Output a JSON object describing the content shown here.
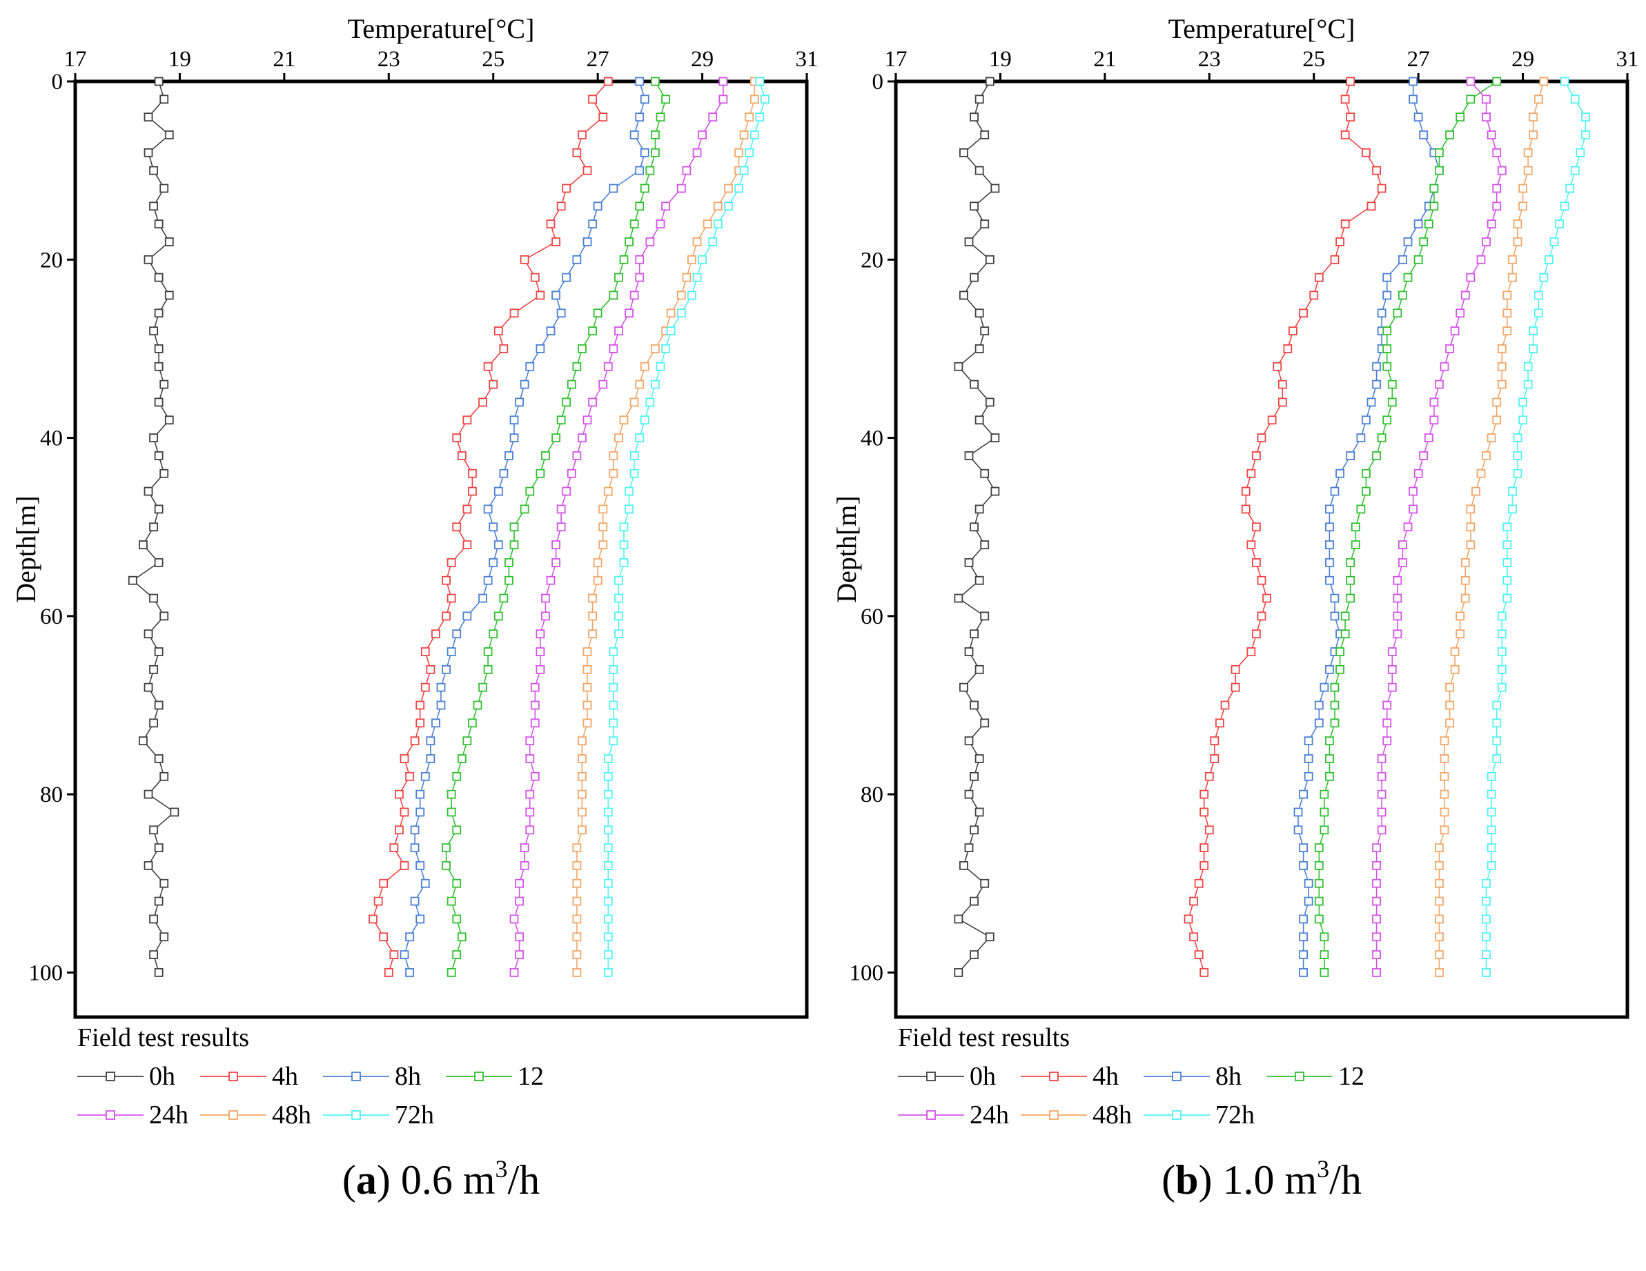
{
  "chart_data": [
    {
      "type": "line",
      "panel": "a",
      "caption_letter": "a",
      "caption_text": " 0.6 m",
      "caption_sup": "3",
      "caption_unit": "/h",
      "title": "(a) 0.6 m³/h",
      "xlabel": "Temperature[°C]",
      "ylabel": "Depth[m]",
      "xlim": [
        17,
        31
      ],
      "ylim": [
        0,
        105
      ],
      "x_axis_position": "top",
      "y_inverted": true,
      "xticks": [
        17,
        19,
        21,
        23,
        25,
        27,
        29,
        31
      ],
      "yticks": [
        0,
        20,
        40,
        60,
        80,
        100
      ],
      "legend_title": "Field test results",
      "depths": [
        0,
        2,
        4,
        6,
        8,
        10,
        12,
        14,
        16,
        18,
        20,
        22,
        24,
        26,
        28,
        30,
        32,
        34,
        36,
        38,
        40,
        42,
        44,
        46,
        48,
        50,
        52,
        54,
        56,
        58,
        60,
        62,
        64,
        66,
        68,
        70,
        72,
        74,
        76,
        78,
        80,
        82,
        84,
        86,
        88,
        90,
        92,
        94,
        96,
        98,
        100
      ],
      "series": [
        {
          "name": "0h",
          "color": "#404040",
          "values": [
            18.6,
            18.7,
            18.4,
            18.8,
            18.4,
            18.5,
            18.7,
            18.5,
            18.6,
            18.8,
            18.4,
            18.6,
            18.8,
            18.6,
            18.5,
            18.6,
            18.6,
            18.7,
            18.6,
            18.8,
            18.5,
            18.6,
            18.7,
            18.4,
            18.6,
            18.5,
            18.3,
            18.6,
            18.1,
            18.5,
            18.7,
            18.4,
            18.6,
            18.5,
            18.4,
            18.6,
            18.5,
            18.3,
            18.6,
            18.7,
            18.4,
            18.9,
            18.5,
            18.6,
            18.4,
            18.7,
            18.6,
            18.5,
            18.7,
            18.5,
            18.6
          ]
        },
        {
          "name": "4h",
          "color": "#ee4444",
          "values": [
            27.2,
            26.9,
            27.1,
            26.7,
            26.6,
            26.8,
            26.4,
            26.3,
            26.1,
            26.2,
            25.6,
            25.8,
            25.9,
            25.4,
            25.1,
            25.2,
            24.9,
            25.0,
            24.8,
            24.5,
            24.3,
            24.4,
            24.6,
            24.6,
            24.5,
            24.3,
            24.5,
            24.2,
            24.1,
            24.2,
            24.1,
            23.9,
            23.7,
            23.8,
            23.7,
            23.6,
            23.6,
            23.5,
            23.3,
            23.4,
            23.2,
            23.3,
            23.2,
            23.1,
            23.3,
            22.9,
            22.8,
            22.7,
            22.9,
            23.1,
            23.0
          ]
        },
        {
          "name": "8h",
          "color": "#4a7fd4",
          "values": [
            27.8,
            27.9,
            27.8,
            27.7,
            27.9,
            27.8,
            27.3,
            27.0,
            26.9,
            26.8,
            26.6,
            26.4,
            26.2,
            26.3,
            26.1,
            25.9,
            25.7,
            25.6,
            25.5,
            25.4,
            25.4,
            25.3,
            25.2,
            25.1,
            24.9,
            25.0,
            25.1,
            25.0,
            24.9,
            24.8,
            24.5,
            24.3,
            24.2,
            24.1,
            24.0,
            24.0,
            23.9,
            23.8,
            23.8,
            23.7,
            23.6,
            23.6,
            23.5,
            23.5,
            23.6,
            23.7,
            23.5,
            23.6,
            23.4,
            23.3,
            23.4
          ]
        },
        {
          "name": "12",
          "color": "#2fbf2f",
          "values": [
            28.1,
            28.3,
            28.2,
            28.1,
            28.1,
            28.0,
            27.9,
            27.8,
            27.7,
            27.6,
            27.5,
            27.4,
            27.3,
            27.0,
            26.9,
            26.7,
            26.6,
            26.5,
            26.4,
            26.3,
            26.2,
            26.0,
            25.9,
            25.7,
            25.6,
            25.4,
            25.4,
            25.3,
            25.3,
            25.2,
            25.1,
            25.0,
            24.9,
            24.9,
            24.8,
            24.7,
            24.6,
            24.5,
            24.4,
            24.3,
            24.2,
            24.2,
            24.3,
            24.1,
            24.1,
            24.3,
            24.2,
            24.3,
            24.4,
            24.3,
            24.2
          ]
        },
        {
          "name": "24h",
          "color": "#d452e8",
          "values": [
            29.4,
            29.4,
            29.2,
            29.0,
            28.9,
            28.7,
            28.6,
            28.3,
            28.2,
            28.0,
            27.8,
            27.8,
            27.7,
            27.6,
            27.4,
            27.3,
            27.2,
            27.1,
            26.9,
            26.8,
            26.7,
            26.6,
            26.5,
            26.4,
            26.3,
            26.3,
            26.2,
            26.2,
            26.1,
            26.0,
            26.0,
            25.9,
            25.9,
            25.9,
            25.8,
            25.8,
            25.8,
            25.7,
            25.7,
            25.8,
            25.7,
            25.7,
            25.7,
            25.6,
            25.6,
            25.5,
            25.5,
            25.4,
            25.5,
            25.5,
            25.4
          ]
        },
        {
          "name": "48h",
          "color": "#f2a565",
          "values": [
            30.0,
            30.0,
            29.9,
            29.8,
            29.7,
            29.7,
            29.5,
            29.3,
            29.1,
            28.9,
            28.8,
            28.7,
            28.6,
            28.4,
            28.3,
            28.1,
            27.9,
            27.8,
            27.7,
            27.5,
            27.4,
            27.3,
            27.3,
            27.2,
            27.1,
            27.1,
            27.1,
            27.0,
            27.0,
            26.9,
            26.9,
            26.9,
            26.8,
            26.8,
            26.8,
            26.8,
            26.8,
            26.7,
            26.7,
            26.7,
            26.7,
            26.7,
            26.7,
            26.6,
            26.6,
            26.6,
            26.6,
            26.6,
            26.6,
            26.6,
            26.6
          ]
        },
        {
          "name": "72h",
          "color": "#4ff2f2",
          "values": [
            30.1,
            30.2,
            30.1,
            30.0,
            29.9,
            29.8,
            29.7,
            29.5,
            29.3,
            29.2,
            29.0,
            28.9,
            28.8,
            28.6,
            28.4,
            28.3,
            28.2,
            28.1,
            28.0,
            27.9,
            27.8,
            27.7,
            27.7,
            27.6,
            27.6,
            27.5,
            27.5,
            27.5,
            27.4,
            27.4,
            27.4,
            27.4,
            27.3,
            27.3,
            27.3,
            27.3,
            27.3,
            27.3,
            27.2,
            27.2,
            27.2,
            27.2,
            27.2,
            27.2,
            27.2,
            27.2,
            27.2,
            27.2,
            27.2,
            27.2,
            27.2
          ]
        }
      ]
    },
    {
      "type": "line",
      "panel": "b",
      "caption_letter": "b",
      "caption_text": " 1.0 m",
      "caption_sup": "3",
      "caption_unit": "/h",
      "title": "(b) 1.0 m³/h",
      "xlabel": "Temperature[°C]",
      "ylabel": "Depth[m]",
      "xlim": [
        17,
        31
      ],
      "ylim": [
        0,
        105
      ],
      "x_axis_position": "top",
      "y_inverted": true,
      "xticks": [
        17,
        19,
        21,
        23,
        25,
        27,
        29,
        31
      ],
      "yticks": [
        0,
        20,
        40,
        60,
        80,
        100
      ],
      "legend_title": "Field test results",
      "depths": [
        0,
        2,
        4,
        6,
        8,
        10,
        12,
        14,
        16,
        18,
        20,
        22,
        24,
        26,
        28,
        30,
        32,
        34,
        36,
        38,
        40,
        42,
        44,
        46,
        48,
        50,
        52,
        54,
        56,
        58,
        60,
        62,
        64,
        66,
        68,
        70,
        72,
        74,
        76,
        78,
        80,
        82,
        84,
        86,
        88,
        90,
        92,
        94,
        96,
        98,
        100
      ],
      "series": [
        {
          "name": "0h",
          "color": "#404040",
          "values": [
            18.8,
            18.6,
            18.5,
            18.7,
            18.3,
            18.6,
            18.9,
            18.5,
            18.7,
            18.4,
            18.8,
            18.5,
            18.3,
            18.6,
            18.7,
            18.6,
            18.2,
            18.5,
            18.8,
            18.6,
            18.9,
            18.4,
            18.7,
            18.9,
            18.6,
            18.5,
            18.7,
            18.4,
            18.6,
            18.2,
            18.7,
            18.5,
            18.4,
            18.6,
            18.3,
            18.5,
            18.7,
            18.4,
            18.6,
            18.5,
            18.4,
            18.6,
            18.5,
            18.4,
            18.3,
            18.7,
            18.5,
            18.2,
            18.8,
            18.5,
            18.2
          ]
        },
        {
          "name": "4h",
          "color": "#ee4444",
          "values": [
            25.7,
            25.6,
            25.7,
            25.6,
            26.0,
            26.2,
            26.3,
            26.1,
            25.6,
            25.5,
            25.4,
            25.1,
            25.0,
            24.8,
            24.6,
            24.5,
            24.3,
            24.4,
            24.4,
            24.2,
            24.0,
            23.9,
            23.8,
            23.7,
            23.7,
            23.9,
            23.8,
            23.9,
            24.0,
            24.1,
            24.0,
            23.9,
            23.8,
            23.5,
            23.5,
            23.3,
            23.2,
            23.1,
            23.1,
            23.0,
            22.9,
            22.9,
            23.0,
            22.9,
            22.9,
            22.8,
            22.7,
            22.6,
            22.7,
            22.8,
            22.9
          ]
        },
        {
          "name": "8h",
          "color": "#4a7fd4",
          "values": [
            26.9,
            26.9,
            27.0,
            27.1,
            27.3,
            27.4,
            27.3,
            27.2,
            27.0,
            26.8,
            26.7,
            26.4,
            26.4,
            26.3,
            26.3,
            26.3,
            26.2,
            26.2,
            26.1,
            26.0,
            25.9,
            25.7,
            25.5,
            25.4,
            25.3,
            25.3,
            25.3,
            25.3,
            25.3,
            25.4,
            25.4,
            25.5,
            25.4,
            25.3,
            25.2,
            25.1,
            25.1,
            24.9,
            24.9,
            24.9,
            24.8,
            24.7,
            24.7,
            24.8,
            24.8,
            24.9,
            24.9,
            24.8,
            24.8,
            24.8,
            24.8
          ]
        },
        {
          "name": "12",
          "color": "#2fbf2f",
          "values": [
            28.5,
            28.0,
            27.8,
            27.6,
            27.4,
            27.4,
            27.3,
            27.3,
            27.2,
            27.1,
            27.0,
            26.8,
            26.7,
            26.6,
            26.4,
            26.4,
            26.4,
            26.5,
            26.5,
            26.4,
            26.3,
            26.2,
            26.0,
            26.0,
            25.9,
            25.8,
            25.8,
            25.7,
            25.7,
            25.7,
            25.6,
            25.6,
            25.5,
            25.5,
            25.4,
            25.4,
            25.4,
            25.3,
            25.3,
            25.3,
            25.2,
            25.2,
            25.2,
            25.1,
            25.1,
            25.1,
            25.1,
            25.1,
            25.2,
            25.2,
            25.2
          ]
        },
        {
          "name": "24h",
          "color": "#d452e8",
          "values": [
            28.0,
            28.3,
            28.3,
            28.4,
            28.5,
            28.6,
            28.5,
            28.5,
            28.4,
            28.3,
            28.2,
            28.0,
            27.9,
            27.8,
            27.7,
            27.6,
            27.5,
            27.4,
            27.3,
            27.3,
            27.2,
            27.1,
            27.0,
            26.9,
            26.9,
            26.8,
            26.7,
            26.7,
            26.6,
            26.6,
            26.6,
            26.6,
            26.5,
            26.5,
            26.5,
            26.4,
            26.4,
            26.4,
            26.3,
            26.3,
            26.3,
            26.3,
            26.3,
            26.2,
            26.2,
            26.2,
            26.2,
            26.2,
            26.2,
            26.2,
            26.2
          ]
        },
        {
          "name": "48h",
          "color": "#f2a565",
          "values": [
            29.4,
            29.3,
            29.2,
            29.2,
            29.1,
            29.1,
            29.0,
            29.0,
            28.9,
            28.9,
            28.8,
            28.8,
            28.7,
            28.7,
            28.7,
            28.6,
            28.6,
            28.6,
            28.5,
            28.5,
            28.4,
            28.3,
            28.2,
            28.1,
            28.0,
            28.0,
            28.0,
            27.9,
            27.9,
            27.9,
            27.8,
            27.8,
            27.7,
            27.7,
            27.6,
            27.6,
            27.6,
            27.5,
            27.5,
            27.5,
            27.5,
            27.5,
            27.5,
            27.4,
            27.4,
            27.4,
            27.4,
            27.4,
            27.4,
            27.4,
            27.4
          ]
        },
        {
          "name": "72h",
          "color": "#4ff2f2",
          "values": [
            29.8,
            30.0,
            30.2,
            30.2,
            30.1,
            30.0,
            29.9,
            29.8,
            29.7,
            29.6,
            29.5,
            29.4,
            29.3,
            29.3,
            29.2,
            29.2,
            29.1,
            29.1,
            29.0,
            29.0,
            28.9,
            28.9,
            28.9,
            28.8,
            28.8,
            28.7,
            28.7,
            28.7,
            28.7,
            28.7,
            28.6,
            28.6,
            28.6,
            28.6,
            28.6,
            28.5,
            28.5,
            28.5,
            28.5,
            28.4,
            28.4,
            28.4,
            28.4,
            28.4,
            28.4,
            28.3,
            28.3,
            28.3,
            28.3,
            28.3,
            28.3
          ]
        }
      ]
    }
  ]
}
